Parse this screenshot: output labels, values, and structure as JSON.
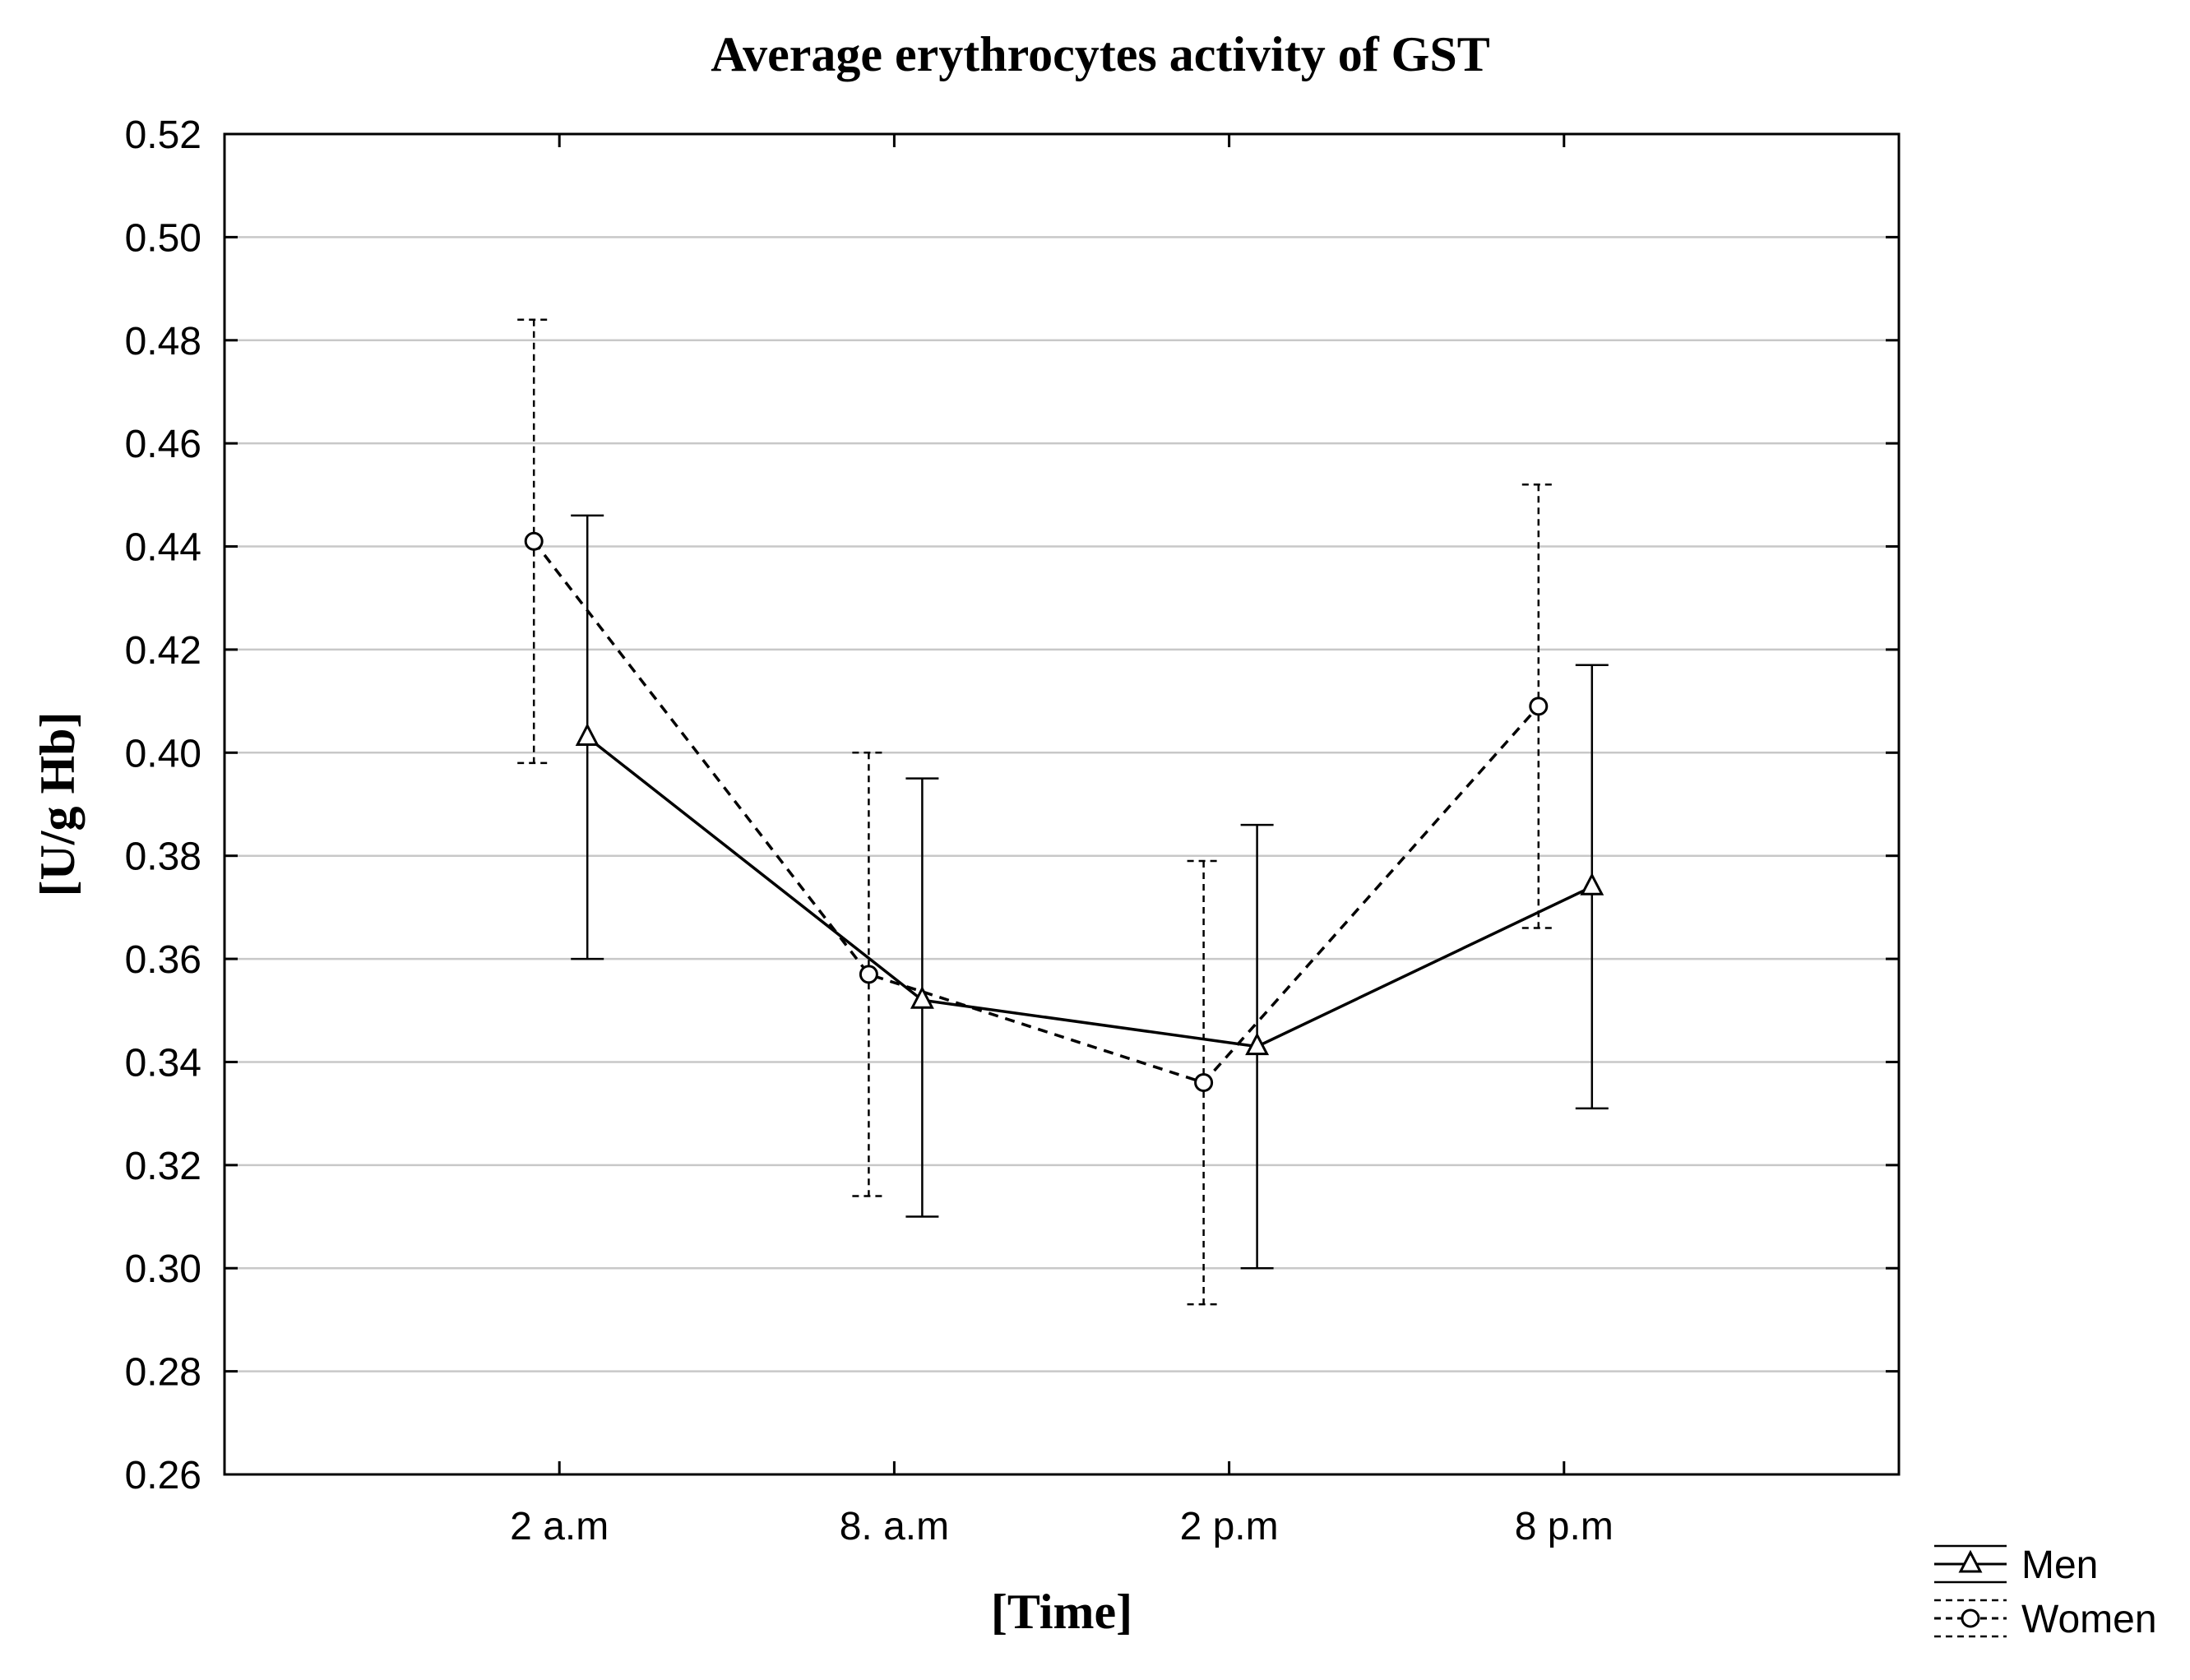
{
  "chart_data": {
    "type": "line",
    "title": "Average erythrocytes activity of GST",
    "xlabel": "[Time]",
    "ylabel": "[U/g Hb]",
    "categories": [
      "2 a.m",
      "8. a.m",
      "2 p.m",
      "8 p.m"
    ],
    "ylim": [
      0.26,
      0.52
    ],
    "yticks": [
      "0.26",
      "0.28",
      "0.30",
      "0.32",
      "0.34",
      "0.36",
      "0.38",
      "0.40",
      "0.42",
      "0.44",
      "0.46",
      "0.48",
      "0.50",
      "0.52"
    ],
    "grid": true,
    "legend_position": "bottom-right",
    "series": [
      {
        "name": "Men",
        "marker": "triangle",
        "line_style": "solid",
        "values": [
          0.403,
          0.352,
          0.343,
          0.374
        ],
        "error_low": [
          0.36,
          0.31,
          0.3,
          0.331
        ],
        "error_high": [
          0.446,
          0.395,
          0.386,
          0.417
        ]
      },
      {
        "name": "Women",
        "marker": "circle",
        "line_style": "dashed",
        "values": [
          0.441,
          0.357,
          0.336,
          0.409
        ],
        "error_low": [
          0.398,
          0.314,
          0.293,
          0.366
        ],
        "error_high": [
          0.484,
          0.4,
          0.379,
          0.452
        ]
      }
    ]
  },
  "colors": {
    "line": "#000000",
    "grid": "#c8c8c8",
    "background": "#ffffff"
  }
}
